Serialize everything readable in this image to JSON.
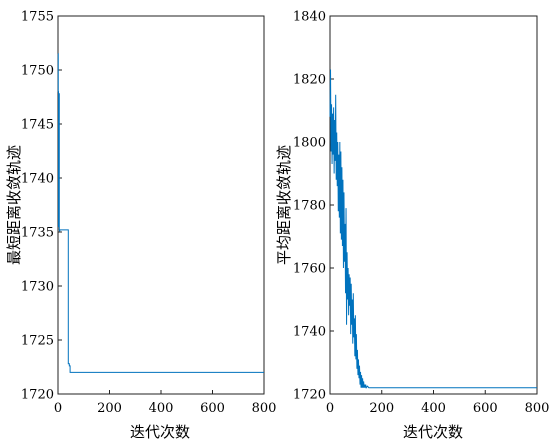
{
  "colors": {
    "series": "#0072BD",
    "axes": "#222222"
  },
  "chart_data": [
    {
      "type": "line",
      "xlabel": "迭代次数",
      "ylabel": "最短距离收敛轨迹",
      "xlim": [
        0,
        800
      ],
      "ylim": [
        1720,
        1755
      ],
      "xticks": [
        "0",
        "200",
        "400",
        "600",
        "800"
      ],
      "yticks": [
        "1720",
        "1725",
        "1730",
        "1735",
        "1740",
        "1745",
        "1750",
        "1755"
      ],
      "grid": false,
      "series": [
        {
          "x": [
            0,
            1,
            1,
            2,
            2,
            3,
            3,
            4,
            4,
            5,
            5,
            6,
            6,
            7,
            7,
            40,
            40,
            44,
            44,
            47,
            47,
            800
          ],
          "y": [
            1751.5,
            1751.5,
            1748,
            1748,
            1735.5,
            1735.5,
            1747,
            1747,
            1747.8,
            1747.8,
            1735.2,
            1735.2,
            1735.1,
            1735.1,
            1735.2,
            1735.2,
            1722.8,
            1722.8,
            1722.6,
            1722.6,
            1722.0,
            1722.0
          ]
        }
      ]
    },
    {
      "type": "line",
      "xlabel": "迭代次数",
      "ylabel": "平均距离收敛轨迹",
      "xlim": [
        0,
        800
      ],
      "ylim": [
        1720,
        1840
      ],
      "xticks": [
        "0",
        "200",
        "400",
        "600",
        "800"
      ],
      "yticks": [
        "1720",
        "1740",
        "1760",
        "1780",
        "1800",
        "1820",
        "1840"
      ],
      "grid": false,
      "series": [
        {
          "x": [
            0,
            2,
            4,
            6,
            8,
            10,
            12,
            14,
            16,
            18,
            20,
            22,
            24,
            26,
            28,
            30,
            32,
            34,
            36,
            38,
            40,
            42,
            44,
            46,
            48,
            50,
            52,
            54,
            56,
            58,
            60,
            62,
            64,
            66,
            68,
            70,
            72,
            74,
            76,
            78,
            80,
            82,
            84,
            86,
            88,
            90,
            92,
            94,
            96,
            98,
            100,
            102,
            104,
            106,
            108,
            110,
            112,
            114,
            116,
            118,
            120,
            122,
            124,
            126,
            128,
            130,
            132,
            134,
            136,
            138,
            140,
            145,
            150,
            800
          ],
          "y": [
            1808,
            1823,
            1797,
            1812,
            1793,
            1809,
            1796,
            1811,
            1790,
            1807,
            1794,
            1815,
            1788,
            1803,
            1786,
            1800,
            1778,
            1796,
            1776,
            1800,
            1771,
            1797,
            1769,
            1792,
            1767,
            1788,
            1760,
            1784,
            1762,
            1774,
            1752,
            1779,
            1742,
            1765,
            1750,
            1760,
            1745,
            1758,
            1748,
            1757,
            1739,
            1755,
            1742,
            1750,
            1736,
            1752,
            1738,
            1744,
            1732,
            1745,
            1731,
            1739,
            1728,
            1734,
            1726,
            1731,
            1725,
            1729,
            1723,
            1727,
            1722,
            1726,
            1722,
            1725,
            1722,
            1724,
            1722,
            1723,
            1722,
            1723,
            1722,
            1722.5,
            1722,
            1722
          ]
        }
      ]
    }
  ]
}
